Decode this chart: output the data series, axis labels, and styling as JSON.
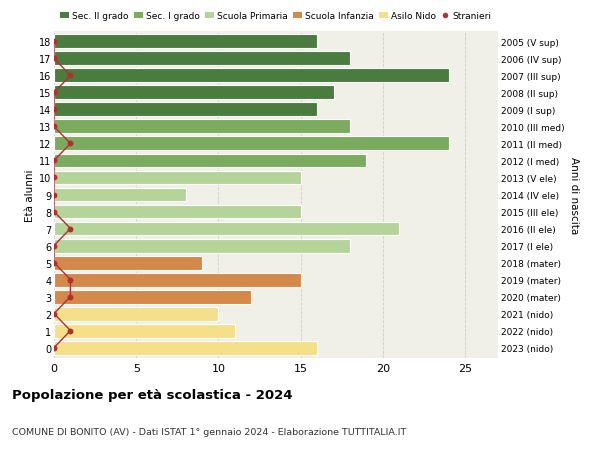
{
  "ages": [
    18,
    17,
    16,
    15,
    14,
    13,
    12,
    11,
    10,
    9,
    8,
    7,
    6,
    5,
    4,
    3,
    2,
    1,
    0
  ],
  "years": [
    "2005 (V sup)",
    "2006 (IV sup)",
    "2007 (III sup)",
    "2008 (II sup)",
    "2009 (I sup)",
    "2010 (III med)",
    "2011 (II med)",
    "2012 (I med)",
    "2013 (V ele)",
    "2014 (IV ele)",
    "2015 (III ele)",
    "2016 (II ele)",
    "2017 (I ele)",
    "2018 (mater)",
    "2019 (mater)",
    "2020 (mater)",
    "2021 (nido)",
    "2022 (nido)",
    "2023 (nido)"
  ],
  "bar_values": [
    16,
    18,
    24,
    17,
    16,
    18,
    24,
    19,
    15,
    8,
    15,
    21,
    18,
    9,
    15,
    12,
    10,
    11,
    16
  ],
  "bar_colors": [
    "#4a7c3f",
    "#4a7c3f",
    "#4a7c3f",
    "#4a7c3f",
    "#4a7c3f",
    "#7aab5e",
    "#7aab5e",
    "#7aab5e",
    "#b5d49a",
    "#b5d49a",
    "#b5d49a",
    "#b5d49a",
    "#b5d49a",
    "#d4894a",
    "#d4894a",
    "#d4894a",
    "#f5e08a",
    "#f5e08a",
    "#f5e08a"
  ],
  "stranieri_values": [
    0,
    0,
    1,
    0,
    0,
    0,
    1,
    0,
    0,
    0,
    0,
    1,
    0,
    0,
    1,
    1,
    0,
    1,
    0
  ],
  "legend_labels": [
    "Sec. II grado",
    "Sec. I grado",
    "Scuola Primaria",
    "Scuola Infanzia",
    "Asilo Nido",
    "Stranieri"
  ],
  "legend_colors": [
    "#4a7c3f",
    "#7aab5e",
    "#b5d49a",
    "#d4894a",
    "#f5e08a",
    "#c0392b"
  ],
  "title": "Popolazione per età scolastica - 2024",
  "subtitle": "COMUNE DI BONITO (AV) - Dati ISTAT 1° gennaio 2024 - Elaborazione TUTTITALIA.IT",
  "ylabel_left": "Età alunni",
  "ylabel_right": "Anni di nascita",
  "xlim": [
    0,
    27
  ],
  "bg_color": "#ffffff",
  "plot_bg_color": "#f0f0e8",
  "bar_edge_color": "#ffffff",
  "grid_color": "#cccccc",
  "stranieri_color": "#b03030",
  "stranieri_line_color": "#b03030"
}
